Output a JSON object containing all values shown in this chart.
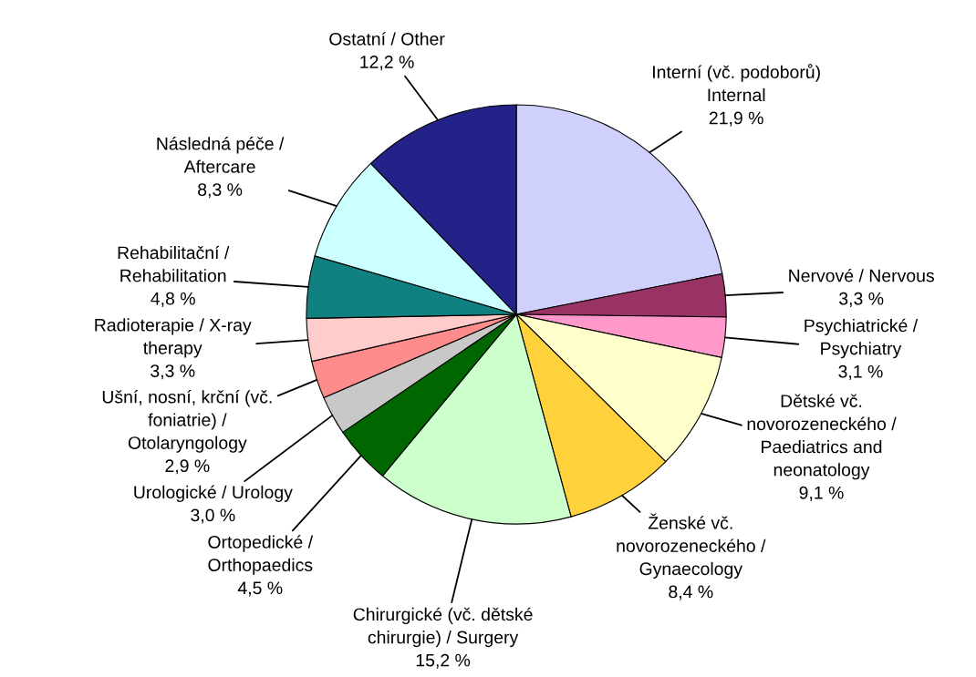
{
  "chart_data": {
    "type": "pie",
    "categories": [
      "Interní (vč. podoborů)\nInternal",
      "Nervové / Nervous",
      "Psychiatrické /\nPsychiatry",
      "Dětské vč.\nnovorozeneckého /\nPaediatrics and\nneonatology",
      "Ženské vč.\nnovorozeneckého /\nGynaecology",
      "Chirurgické (vč. dětské\nchirurgie) / Surgery",
      "Ortopedické /\nOrthopaedics",
      "Urologické / Urology",
      "Ušní, nosní, krční (vč.\nfoniatrie) /\nOtolaryngology",
      "Radioterapie / X-ray\ntherapy",
      "Rehabilitační /\nRehabilitation",
      "Následná péče /\nAftercare",
      "Ostatní / Other"
    ],
    "values": [
      21.9,
      3.3,
      3.1,
      9.1,
      8.4,
      15.2,
      4.5,
      3.0,
      2.9,
      3.3,
      4.8,
      8.3,
      12.2
    ],
    "value_labels": [
      "21,9 %",
      "3,3 %",
      "3,1 %",
      "9,1 %",
      "8,4 %",
      "15,2 %",
      "4,5 %",
      "3,0 %",
      "2,9 %",
      "3,3 %",
      "4,8 %",
      "8,3 %",
      "12,2 %"
    ],
    "colors": [
      "#d0d0fc",
      "#993366",
      "#ff99cc",
      "#ffffcc",
      "#ffd23c",
      "#ccffcc",
      "#006600",
      "#c8c8c8",
      "#ff8c8c",
      "#ffcccc",
      "#108080",
      "#ccffff",
      "#222288"
    ]
  }
}
